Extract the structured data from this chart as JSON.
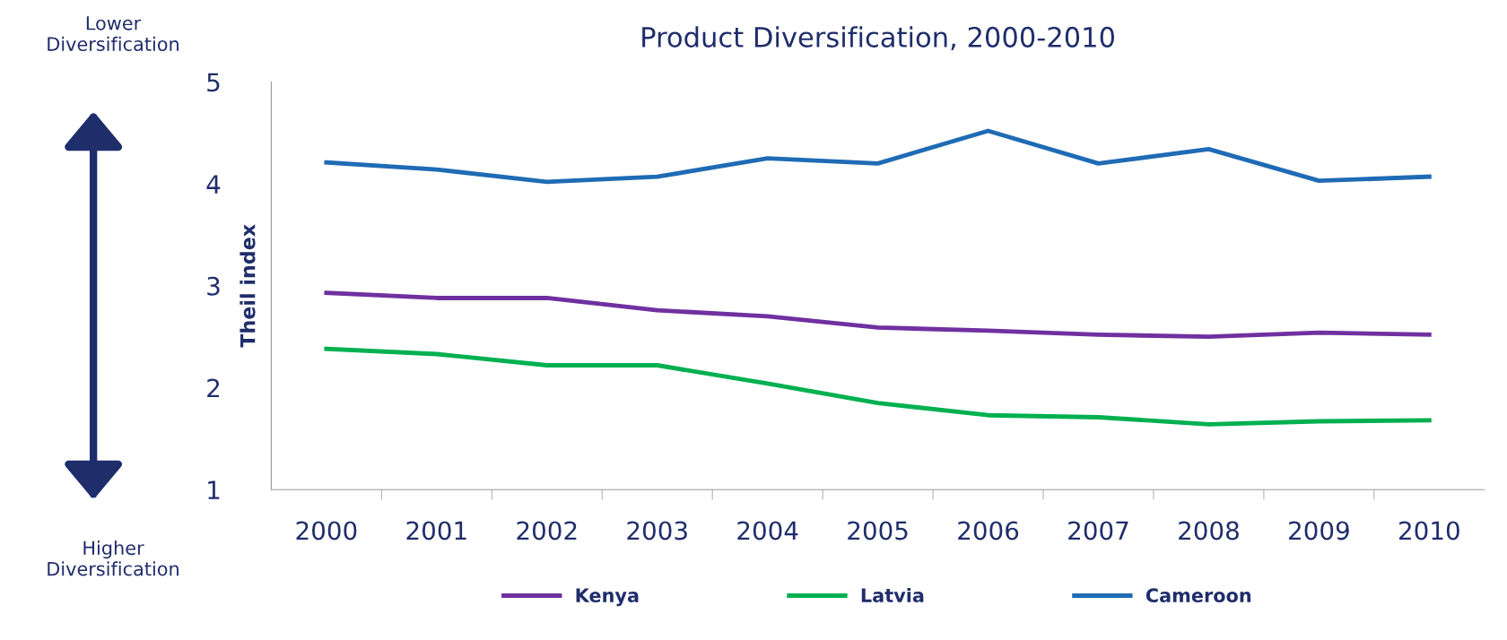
{
  "chart_data": {
    "type": "line",
    "title": "Product Diversification, 2000-2010",
    "ylabel": "Theil index",
    "categories": [
      "2000",
      "2001",
      "2002",
      "2003",
      "2004",
      "2005",
      "2006",
      "2007",
      "2008",
      "2009",
      "2010"
    ],
    "series": [
      {
        "name": "Kenya",
        "color": "#7030a0",
        "values": [
          2.93,
          2.88,
          2.88,
          2.76,
          2.7,
          2.59,
          2.56,
          2.52,
          2.5,
          2.54,
          2.52
        ]
      },
      {
        "name": "Latvia",
        "color": "#00b050",
        "values": [
          2.38,
          2.33,
          2.22,
          2.22,
          2.04,
          1.85,
          1.73,
          1.71,
          1.64,
          1.67,
          1.68
        ]
      },
      {
        "name": "Cameroon",
        "color": "#1f6bb5",
        "values": [
          4.21,
          4.14,
          4.02,
          4.07,
          4.25,
          4.2,
          4.52,
          4.2,
          4.34,
          4.03,
          4.07
        ]
      }
    ],
    "ylim": [
      1,
      5
    ],
    "yticks": [
      1,
      2,
      3,
      4,
      5
    ],
    "grid": false,
    "legend": "bottom",
    "marker": "none",
    "line_style": "solid",
    "annotations": [
      "Lower\nDiversification",
      "Higher\nDiversification"
    ]
  }
}
